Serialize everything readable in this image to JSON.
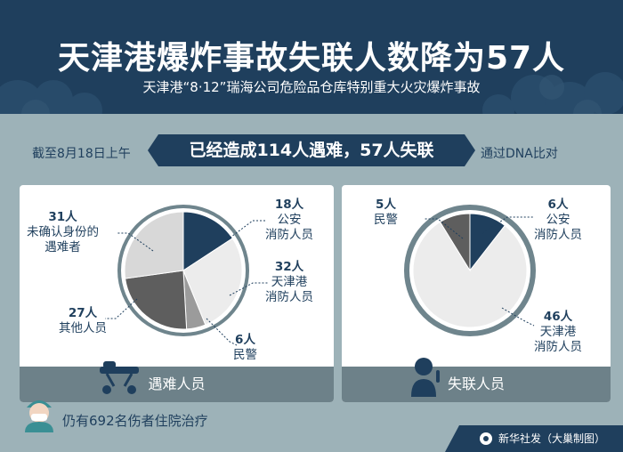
{
  "header": {
    "title": "天津港爆炸事故失联人数降为57人",
    "subtitle": "天津港“8·12”瑞海公司危险品仓库特别重大火灾爆炸事故"
  },
  "band": {
    "left": "截至8月18日上午",
    "center": "已经造成114人遇难，57人失联",
    "right": "通过DNA比对"
  },
  "panels": {
    "victims": {
      "footer": "遇难人员",
      "labels": {
        "fire": {
          "num": "18人",
          "l1": "公安",
          "l2": "消防人员"
        },
        "tianjin": {
          "num": "32人",
          "l1": "天津港",
          "l2": "消防人员"
        },
        "police": {
          "num": "6人",
          "l1": "民警"
        },
        "other": {
          "num": "27人",
          "l1": "其他人员"
        },
        "unknown": {
          "num": "31人",
          "l1": "未确认身份的",
          "l2": "遇难者"
        }
      }
    },
    "missing": {
      "footer": "失联人员",
      "labels": {
        "police": {
          "num": "5人",
          "l1": "民警"
        },
        "fire": {
          "num": "6人",
          "l1": "公安",
          "l2": "消防人员"
        },
        "tianjin": {
          "num": "46人",
          "l1": "天津港",
          "l2": "消防人员"
        }
      }
    }
  },
  "chart_data": [
    {
      "type": "pie",
      "title": "遇难人员",
      "categories": [
        "公安消防人员",
        "天津港消防人员",
        "民警",
        "其他人员",
        "未确认身份的遇难者"
      ],
      "values": [
        18,
        32,
        6,
        27,
        31
      ],
      "colors": [
        "#1f3f5d",
        "#ececec",
        "#9b9b9b",
        "#5e5e5e",
        "#d8d8d8"
      ]
    },
    {
      "type": "pie",
      "title": "失联人员",
      "categories": [
        "公安消防人员",
        "天津港消防人员",
        "民警"
      ],
      "values": [
        6,
        46,
        5
      ],
      "colors": [
        "#1f3f5d",
        "#ececec",
        "#5e5e5e"
      ]
    }
  ],
  "bottom": {
    "text": "仍有692名伤者住院治疗"
  },
  "credit": {
    "text": "新华社发（大巢制图）"
  },
  "colors": {
    "navy": "#1f3f5d",
    "background": "#9db2b8",
    "ring": "#6f858d",
    "footer": "#6d8189"
  }
}
